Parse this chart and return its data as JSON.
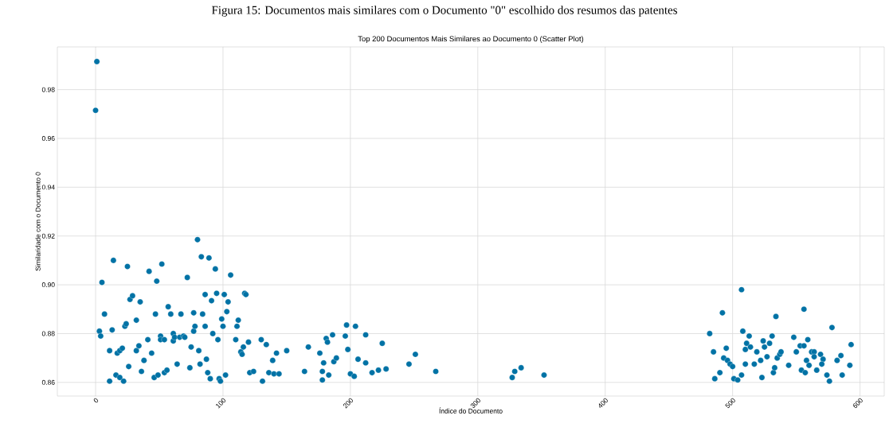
{
  "chart_data": {
    "type": "scatter",
    "title": "Top 200 Documentos Mais Similares ao Documento 0 (Scatter Plot)",
    "xlabel": "Índice do Documento",
    "ylabel": "Similaridade com o Documento 0",
    "annotations": [
      "Figura 15: Documentos mais similares com o Documento \"0\" escolhido dos resumos das patentes"
    ],
    "xlim": [
      -30,
      619
    ],
    "ylim": [
      0.8544,
      0.9975
    ],
    "xticks": [
      0,
      100,
      200,
      300,
      400,
      500,
      600
    ],
    "yticks": [
      {
        "value": 0.86,
        "label": "0.86"
      },
      {
        "value": 0.88,
        "label": "0.88"
      },
      {
        "value": 0.9,
        "label": "0.90"
      },
      {
        "value": 0.92,
        "label": "0.92"
      },
      {
        "value": 0.94,
        "label": "0.94"
      },
      {
        "value": 0.96,
        "label": "0.96"
      },
      {
        "value": 0.98,
        "label": "0.98"
      }
    ],
    "grid": true,
    "marker": "circle",
    "series": [
      {
        "color": "#0072a5",
        "x": [
          1,
          0,
          3,
          4,
          5,
          7,
          11,
          11,
          13,
          14,
          16,
          17,
          19,
          19,
          21,
          22,
          23,
          24,
          25,
          26,
          27,
          29,
          32,
          32,
          34,
          35,
          36,
          38,
          41,
          42,
          44,
          46,
          47,
          48,
          49,
          51,
          51,
          52,
          54,
          54,
          56,
          57,
          59,
          61,
          61,
          62,
          64,
          66,
          67,
          69,
          70,
          72,
          74,
          75,
          77,
          77,
          78,
          80,
          81,
          82,
          83,
          84,
          86,
          86,
          87,
          88,
          89,
          90,
          91,
          92,
          94,
          95,
          96,
          97,
          98,
          99,
          100,
          101,
          102,
          103,
          104,
          106,
          110,
          111,
          112,
          114,
          115,
          116,
          117,
          118,
          120,
          121,
          124,
          130,
          131,
          134,
          136,
          139,
          140,
          142,
          144,
          150,
          164,
          167,
          176,
          178,
          178,
          179,
          181,
          182,
          183,
          186,
          187,
          189,
          196,
          197,
          198,
          200,
          203,
          204,
          206,
          212,
          212,
          217,
          222,
          225,
          228,
          246,
          251,
          267,
          327,
          329,
          334,
          352,
          482,
          492,
          507,
          485,
          495,
          493,
          496,
          498,
          500,
          490,
          486,
          501,
          504,
          507,
          508,
          513,
          511,
          510,
          514,
          510,
          517,
          519,
          524,
          525,
          529,
          531,
          522,
          527,
          523,
          534,
          532,
          533,
          535,
          537,
          538,
          544,
          548,
          550,
          553,
          556,
          556,
          559,
          554,
          557,
          558,
          560,
          562,
          564,
          564,
          566,
          569,
          571,
          570,
          574,
          576,
          578,
          582,
          585,
          586,
          593,
          592
        ],
        "values": [
          0.9915,
          0.9715,
          0.881,
          0.879,
          0.901,
          0.888,
          0.873,
          0.8605,
          0.8815,
          0.91,
          0.863,
          0.872,
          0.873,
          0.862,
          0.874,
          0.8605,
          0.883,
          0.884,
          0.9075,
          0.8665,
          0.894,
          0.8955,
          0.8855,
          0.873,
          0.875,
          0.893,
          0.8645,
          0.869,
          0.8775,
          0.9055,
          0.872,
          0.862,
          0.888,
          0.9015,
          0.863,
          0.879,
          0.8775,
          0.9085,
          0.864,
          0.8775,
          0.865,
          0.891,
          0.888,
          0.88,
          0.877,
          0.8785,
          0.8675,
          0.8785,
          0.888,
          0.879,
          0.8785,
          0.903,
          0.866,
          0.8745,
          0.8885,
          0.881,
          0.883,
          0.9185,
          0.873,
          0.8675,
          0.9115,
          0.888,
          0.896,
          0.883,
          0.8695,
          0.864,
          0.911,
          0.8615,
          0.8935,
          0.88,
          0.9065,
          0.8965,
          0.8775,
          0.8615,
          0.8605,
          0.886,
          0.883,
          0.896,
          0.863,
          0.889,
          0.893,
          0.904,
          0.8775,
          0.883,
          0.8855,
          0.8725,
          0.8715,
          0.8745,
          0.8965,
          0.896,
          0.8765,
          0.864,
          0.8645,
          0.8775,
          0.8605,
          0.8755,
          0.864,
          0.869,
          0.8635,
          0.872,
          0.8635,
          0.873,
          0.8645,
          0.8745,
          0.872,
          0.8645,
          0.861,
          0.868,
          0.878,
          0.8765,
          0.863,
          0.8795,
          0.8685,
          0.87,
          0.879,
          0.8835,
          0.8735,
          0.8635,
          0.8625,
          0.883,
          0.8695,
          0.8795,
          0.868,
          0.864,
          0.865,
          0.876,
          0.8655,
          0.8675,
          0.8715,
          0.8645,
          0.862,
          0.8645,
          0.866,
          0.863,
          0.88,
          0.8885,
          0.898,
          0.8725,
          0.874,
          0.87,
          0.869,
          0.8675,
          0.8665,
          0.864,
          0.8615,
          0.8615,
          0.861,
          0.863,
          0.881,
          0.879,
          0.876,
          0.8735,
          0.8745,
          0.8675,
          0.8675,
          0.8725,
          0.877,
          0.8745,
          0.876,
          0.879,
          0.869,
          0.8705,
          0.862,
          0.887,
          0.864,
          0.866,
          0.87,
          0.8715,
          0.8725,
          0.867,
          0.8785,
          0.8725,
          0.875,
          0.875,
          0.89,
          0.8775,
          0.865,
          0.864,
          0.869,
          0.867,
          0.8725,
          0.8725,
          0.8705,
          0.865,
          0.8715,
          0.8695,
          0.8675,
          0.863,
          0.8605,
          0.8825,
          0.869,
          0.871,
          0.863,
          0.8755,
          0.867
        ]
      }
    ]
  }
}
